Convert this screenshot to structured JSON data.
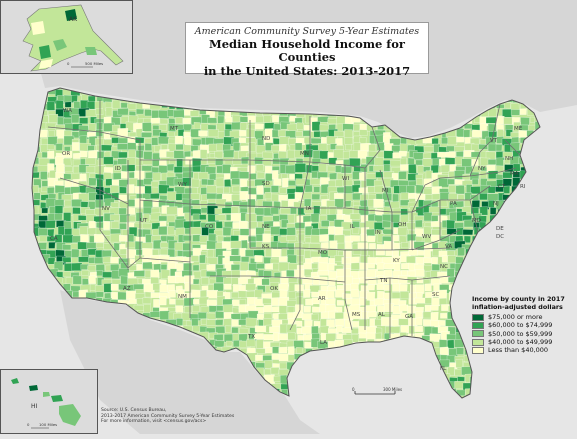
{
  "title": {
    "subtitle": "American Community Survey 5-Year Estimates",
    "line1": "Median Household Income for Counties",
    "line2": "in the United States: 2013-2017"
  },
  "legend": {
    "title_line1": "Income by county in 2017",
    "title_line2": "inflation-adjusted dollars",
    "items": [
      {
        "label": "$75,000 or more",
        "color": "#006837"
      },
      {
        "label": "$60,000 to $74,999",
        "color": "#31a354"
      },
      {
        "label": "$50,000 to $59,999",
        "color": "#78c679"
      },
      {
        "label": "$40,000 to $49,999",
        "color": "#c2e699"
      },
      {
        "label": "Less than $40,000",
        "color": "#ffffcc"
      }
    ]
  },
  "source": {
    "line1": "Source: U.S. Census Bureau,",
    "line2": "2013-2017 American Community Survey 5-Year Estimates",
    "line3": "For more information, visit <census.gov/acs>"
  },
  "scales": {
    "ak": "500 Miles",
    "hi": "100 Miles",
    "us": "300 Miles"
  },
  "state_labels": {
    "AK": "AK",
    "HI": "HI",
    "WA": "WA",
    "OR": "OR",
    "CA": "CA",
    "ID": "ID",
    "NV": "NV",
    "MT": "MT",
    "WY": "WY",
    "UT": "UT",
    "AZ": "AZ",
    "CO": "CO",
    "NM": "NM",
    "ND": "ND",
    "SD": "SD",
    "NE": "NE",
    "KS": "KS",
    "OK": "OK",
    "TX": "TX",
    "MN": "MN",
    "IA": "IA",
    "MO": "MO",
    "AR": "AR",
    "LA": "LA",
    "WI": "WI",
    "IL": "IL",
    "MI": "MI",
    "IN": "IN",
    "OH": "OH",
    "KY": "KY",
    "TN": "TN",
    "MS": "MS",
    "AL": "AL",
    "GA": "GA",
    "FL": "FL",
    "SC": "SC",
    "NC": "NC",
    "VA": "VA",
    "WV": "WV",
    "PA": "PA",
    "NY": "NY",
    "VT": "VT",
    "NH": "NH",
    "ME": "ME",
    "MA": "MA",
    "RI": "RI",
    "CT": "CT",
    "NJ": "NJ",
    "DE": "DE",
    "MD": "MD",
    "DC": "DC"
  },
  "colors": {
    "water": "#e6e6e6",
    "land_neighbor": "#d6d6d6",
    "county_border": "#ffffff",
    "state_border": "#6f6f6f"
  }
}
